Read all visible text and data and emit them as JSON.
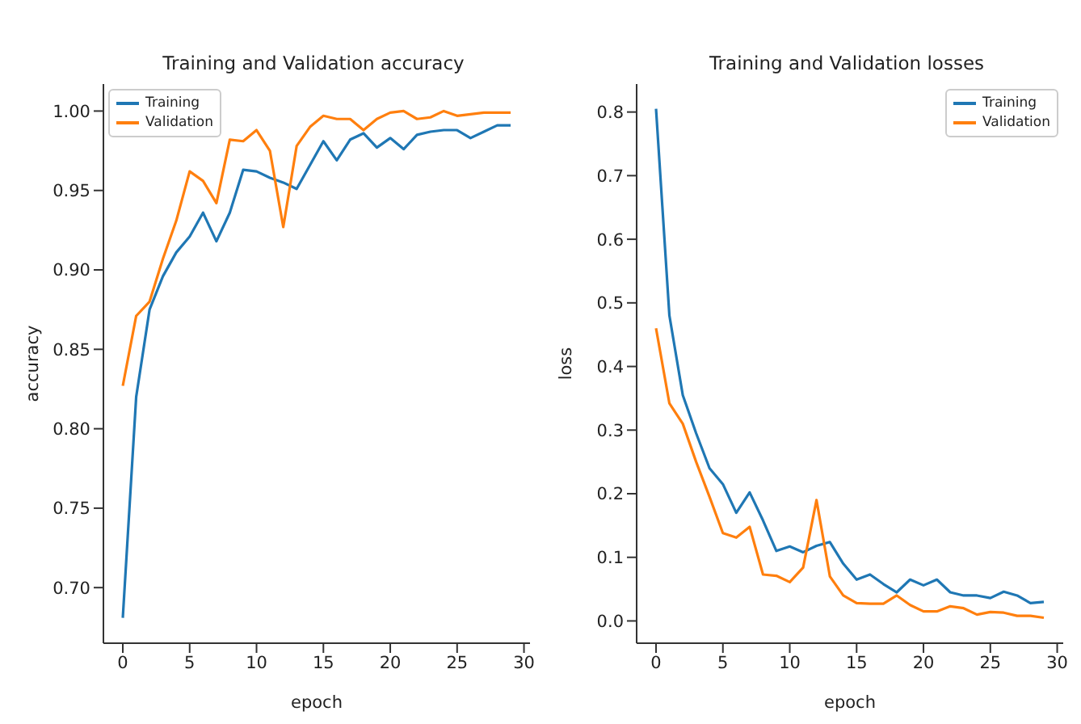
{
  "chart_data": [
    {
      "type": "line",
      "title": "Training and Validation accuracy",
      "xlabel": "epoch",
      "ylabel": "accuracy",
      "x": [
        0,
        1,
        2,
        3,
        4,
        5,
        6,
        7,
        8,
        9,
        10,
        11,
        12,
        13,
        14,
        15,
        16,
        17,
        18,
        19,
        20,
        21,
        22,
        23,
        24,
        25,
        26,
        27,
        28,
        29
      ],
      "xlim": [
        -1.45,
        30.45
      ],
      "xticks": [
        0,
        5,
        10,
        15,
        20,
        25,
        30
      ],
      "ylim": [
        0.665,
        1.017
      ],
      "yticks": [
        {
          "value": 0.7,
          "label": "0.70"
        },
        {
          "value": 0.75,
          "label": "0.75"
        },
        {
          "value": 0.8,
          "label": "0.80"
        },
        {
          "value": 0.85,
          "label": "0.85"
        },
        {
          "value": 0.9,
          "label": "0.90"
        },
        {
          "value": 0.95,
          "label": "0.95"
        },
        {
          "value": 1.0,
          "label": "1.00"
        }
      ],
      "legend": "top left",
      "grid": false,
      "marker": "none",
      "line_style": "solid",
      "series": [
        {
          "name": "Training",
          "color": "#1f77b4",
          "values": [
            0.681,
            0.82,
            0.875,
            0.896,
            0.911,
            0.921,
            0.936,
            0.918,
            0.936,
            0.963,
            0.962,
            0.958,
            0.955,
            0.951,
            0.966,
            0.981,
            0.969,
            0.982,
            0.986,
            0.977,
            0.983,
            0.976,
            0.985,
            0.987,
            0.988,
            0.988,
            0.983,
            0.987,
            0.991,
            0.991
          ]
        },
        {
          "name": "Validation",
          "color": "#ff7f0e",
          "values": [
            0.827,
            0.871,
            0.88,
            0.907,
            0.931,
            0.962,
            0.956,
            0.942,
            0.982,
            0.981,
            0.988,
            0.975,
            0.927,
            0.978,
            0.99,
            0.997,
            0.995,
            0.995,
            0.988,
            0.995,
            0.999,
            1.0,
            0.995,
            0.996,
            1.0,
            0.997,
            0.998,
            0.999,
            0.999,
            0.999
          ]
        }
      ]
    },
    {
      "type": "line",
      "title": "Training and Validation losses",
      "xlabel": "epoch",
      "ylabel": "loss",
      "x": [
        0,
        1,
        2,
        3,
        4,
        5,
        6,
        7,
        8,
        9,
        10,
        11,
        12,
        13,
        14,
        15,
        16,
        17,
        18,
        19,
        20,
        21,
        22,
        23,
        24,
        25,
        26,
        27,
        28,
        29
      ],
      "xlim": [
        -1.45,
        30.45
      ],
      "xticks": [
        0,
        5,
        10,
        15,
        20,
        25,
        30
      ],
      "ylim": [
        -0.035,
        0.844
      ],
      "yticks": [
        {
          "value": 0,
          "label": "0.0"
        },
        {
          "value": 0.1,
          "label": "0.1"
        },
        {
          "value": 0.2,
          "label": "0.2"
        },
        {
          "value": 0.3,
          "label": "0.3"
        },
        {
          "value": 0.4,
          "label": "0.4"
        },
        {
          "value": 0.5,
          "label": "0.5"
        },
        {
          "value": 0.6,
          "label": "0.6"
        },
        {
          "value": 0.7,
          "label": "0.7"
        },
        {
          "value": 0.8,
          "label": "0.8"
        }
      ],
      "legend": "top right",
      "grid": false,
      "marker": "none",
      "line_style": "solid",
      "series": [
        {
          "name": "Training",
          "color": "#1f77b4",
          "values": [
            0.805,
            0.48,
            0.355,
            0.295,
            0.24,
            0.215,
            0.17,
            0.202,
            0.158,
            0.11,
            0.117,
            0.108,
            0.118,
            0.124,
            0.09,
            0.065,
            0.073,
            0.058,
            0.045,
            0.065,
            0.056,
            0.065,
            0.045,
            0.04,
            0.04,
            0.036,
            0.046,
            0.04,
            0.028,
            0.03
          ]
        },
        {
          "name": "Validation",
          "color": "#ff7f0e",
          "values": [
            0.46,
            0.342,
            0.31,
            0.25,
            0.195,
            0.138,
            0.131,
            0.148,
            0.073,
            0.071,
            0.061,
            0.084,
            0.19,
            0.07,
            0.04,
            0.028,
            0.027,
            0.027,
            0.04,
            0.025,
            0.015,
            0.015,
            0.023,
            0.02,
            0.01,
            0.014,
            0.013,
            0.008,
            0.008,
            0.005
          ]
        }
      ]
    }
  ]
}
